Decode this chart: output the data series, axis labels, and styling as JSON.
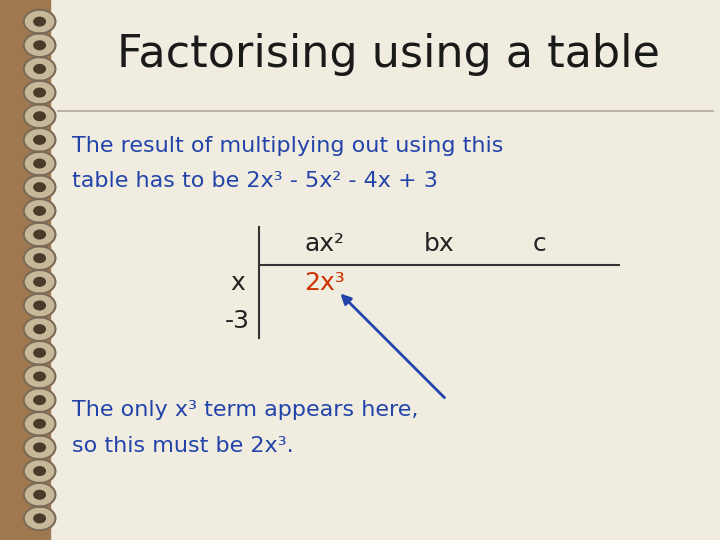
{
  "title": "Factorising using a table",
  "title_color": "#1a1a1a",
  "title_fontsize": 32,
  "bg_outer": "#a07850",
  "bg_paper": "#f0ece0",
  "text_color_blue": "#2244aa",
  "text_color_red": "#cc3300",
  "text_color_dark": "#222222",
  "body_text1": "The result of multiplying out using this",
  "body_text2": "table has to be 2x³ - 5x² - 4x + 3",
  "col_headers": [
    "ax²",
    "bx",
    "c"
  ],
  "row_labels": [
    "x",
    "-3"
  ],
  "cell_value": "2x³",
  "bottom_text1": "The only x³ term appears here,",
  "bottom_text2": "so this must be 2x³.",
  "font_size_body": 16,
  "font_size_table": 18,
  "font_size_bottom": 16
}
